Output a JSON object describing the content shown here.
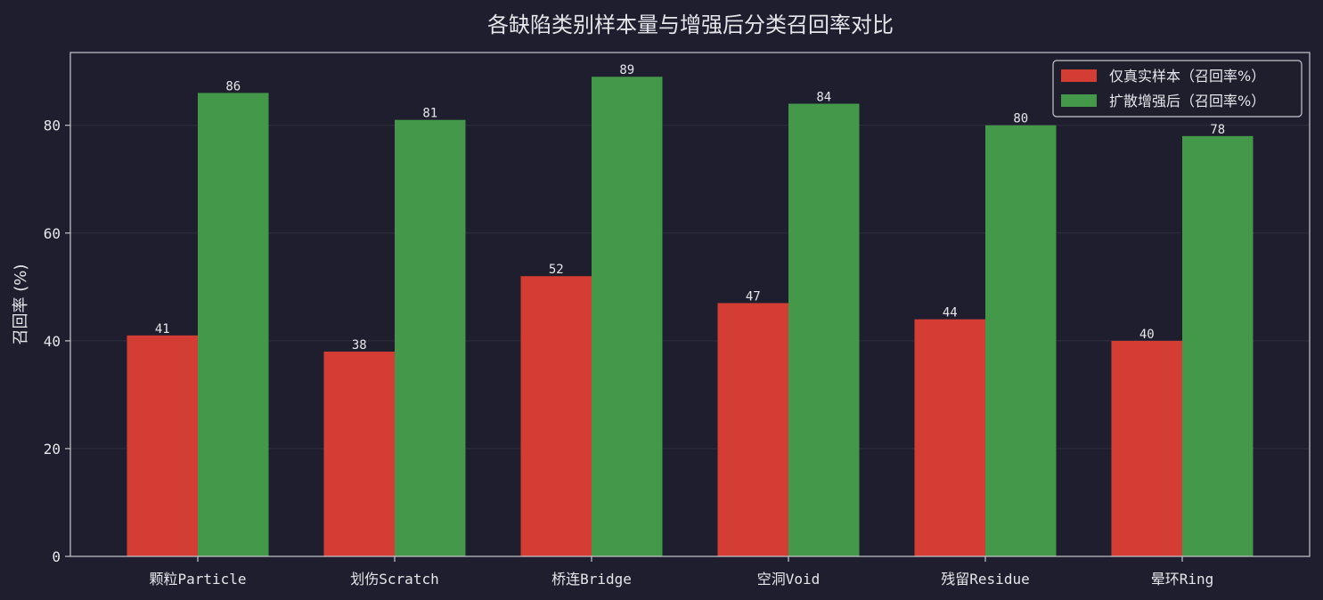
{
  "chart_data": {
    "type": "bar",
    "title": "各缺陷类别样本量与增强后分类召回率对比",
    "xlabel": "",
    "ylabel": "召回率 (%)",
    "categories": [
      "颗粒Particle",
      "划伤Scratch",
      "桥连Bridge",
      "空洞Void",
      "残留Residue",
      "晕环Ring"
    ],
    "series": [
      {
        "name": "仅真实样本（召回率%）",
        "values": [
          41,
          38,
          52,
          47,
          44,
          40
        ],
        "color": "#d43d34"
      },
      {
        "name": "扩散增强后（召回率%）",
        "values": [
          86,
          81,
          89,
          84,
          80,
          78
        ],
        "color": "#43984a"
      }
    ],
    "ylim": [
      0,
      93.5
    ],
    "yticks": [
      0,
      20,
      40,
      60,
      80
    ],
    "grid": true,
    "legend_position": "top-right",
    "colors": {
      "background": "#1e1e2e",
      "axes": "#c8c8d0",
      "grid": "#2e2e3e",
      "text": "#e6e6ea"
    }
  }
}
